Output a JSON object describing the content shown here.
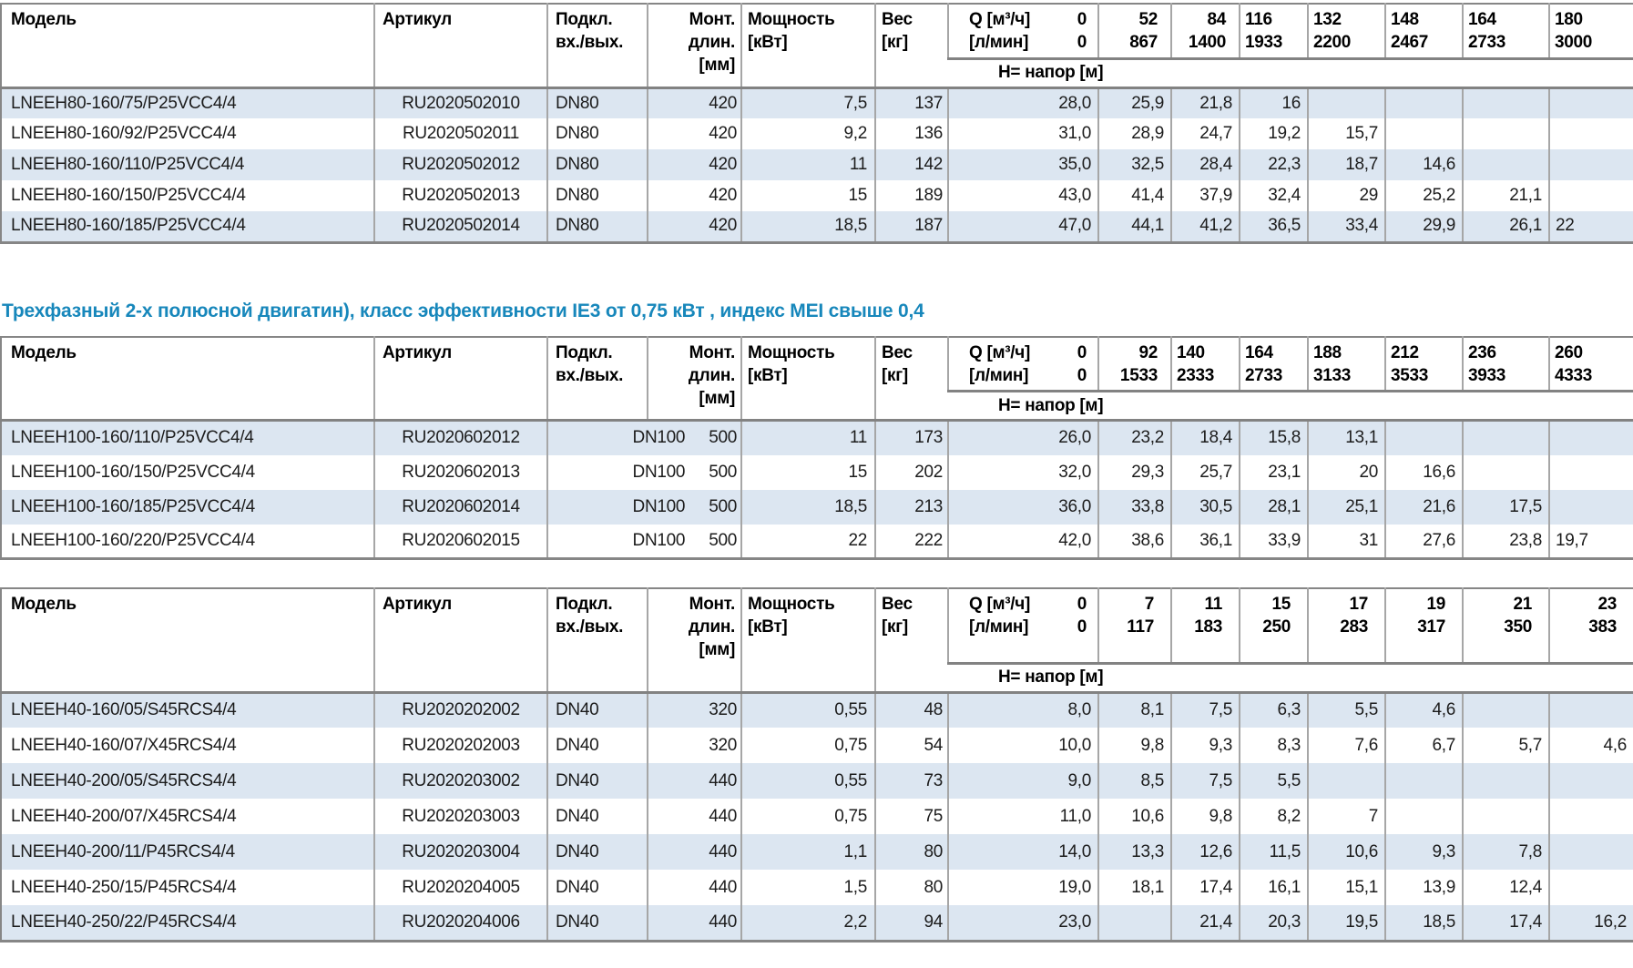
{
  "colors": {
    "accent": "#1787bb",
    "stripe": "#dce6f1",
    "border_light": "#a6a6a6",
    "border_dark": "#828282"
  },
  "heading": {
    "text": "Трехфазный 2-х полюсной двигатин), класс эффективности IE3 от 0,75 кВт ,  индекс MEI свыше 0,4"
  },
  "shared_headers": {
    "model": "Модель",
    "artikul": "Артикул",
    "podkl": [
      "Подкл.",
      "вх./вых."
    ],
    "mont": [
      "Монт.",
      "длин.",
      "[мм]"
    ],
    "power": [
      "Мощность",
      "[кВт]"
    ],
    "weight": [
      "Вес",
      "[кг]"
    ],
    "q_label": {
      "line1_left": "Q [м³/ч]",
      "line1_right": "0",
      "line2_left": "[л/мин]",
      "line2_right": "0"
    },
    "h_label": "H= напор [м]"
  },
  "tables": [
    {
      "name": "pump-table-lneeh80",
      "merged_podkl_mont": false,
      "q_last_align": "left",
      "q_cols": [
        {
          "m3": "52",
          "lmin": "867",
          "align": "right"
        },
        {
          "m3": "84",
          "lmin": "1400",
          "align": "right"
        },
        {
          "m3": "116",
          "lmin": "1933",
          "align": "left"
        },
        {
          "m3": "132",
          "lmin": "2200",
          "align": "left"
        },
        {
          "m3": "148",
          "lmin": "2467",
          "align": "left"
        },
        {
          "m3": "164",
          "lmin": "2733",
          "align": "left"
        },
        {
          "m3": "180",
          "lmin": "3000",
          "align": "left"
        }
      ],
      "rows": [
        {
          "model": "LNEEH80-160/75/P25VCC4/4",
          "artikul": "RU2020502010",
          "podkl": "DN80",
          "mont": "420",
          "power": "7,5",
          "weight": "137",
          "h": [
            "28,0",
            "25,9",
            "21,8",
            "16",
            "",
            "",
            "",
            ""
          ]
        },
        {
          "model": "LNEEH80-160/92/P25VCC4/4",
          "artikul": "RU2020502011",
          "podkl": "DN80",
          "mont": "420",
          "power": "9,2",
          "weight": "136",
          "h": [
            "31,0",
            "28,9",
            "24,7",
            "19,2",
            "15,7",
            "",
            "",
            ""
          ]
        },
        {
          "model": "LNEEH80-160/110/P25VCC4/4",
          "artikul": "RU2020502012",
          "podkl": "DN80",
          "mont": "420",
          "power": "11",
          "weight": "142",
          "h": [
            "35,0",
            "32,5",
            "28,4",
            "22,3",
            "18,7",
            "14,6",
            "",
            ""
          ]
        },
        {
          "model": "LNEEH80-160/150/P25VCC4/4",
          "artikul": "RU2020502013",
          "podkl": "DN80",
          "mont": "420",
          "power": "15",
          "weight": "189",
          "h": [
            "43,0",
            "41,4",
            "37,9",
            "32,4",
            "29",
            "25,2",
            "21,1",
            ""
          ]
        },
        {
          "model": "LNEEH80-160/185/P25VCC4/4",
          "artikul": "RU2020502014",
          "podkl": "DN80",
          "mont": "420",
          "power": "18,5",
          "weight": "187",
          "h": [
            "47,0",
            "44,1",
            "41,2",
            "36,5",
            "33,4",
            "29,9",
            "26,1",
            "22"
          ]
        }
      ]
    },
    {
      "name": "pump-table-lneeh100",
      "merged_podkl_mont": true,
      "q_last_align": "left",
      "q_cols": [
        {
          "m3": "92",
          "lmin": "1533",
          "align": "right"
        },
        {
          "m3": "140",
          "lmin": "2333",
          "align": "left"
        },
        {
          "m3": "164",
          "lmin": "2733",
          "align": "left"
        },
        {
          "m3": "188",
          "lmin": "3133",
          "align": "left"
        },
        {
          "m3": "212",
          "lmin": "3533",
          "align": "left"
        },
        {
          "m3": "236",
          "lmin": "3933",
          "align": "left"
        },
        {
          "m3": "260",
          "lmin": "4333",
          "align": "left"
        }
      ],
      "rows": [
        {
          "model": "LNEEH100-160/110/P25VCC4/4",
          "artikul": "RU2020602012",
          "podkl": "DN100",
          "mont": "500",
          "power": "11",
          "weight": "173",
          "h": [
            "26,0",
            "23,2",
            "18,4",
            "15,8",
            "13,1",
            "",
            "",
            ""
          ]
        },
        {
          "model": "LNEEH100-160/150/P25VCC4/4",
          "artikul": "RU2020602013",
          "podkl": "DN100",
          "mont": "500",
          "power": "15",
          "weight": "202",
          "h": [
            "32,0",
            "29,3",
            "25,7",
            "23,1",
            "20",
            "16,6",
            "",
            ""
          ]
        },
        {
          "model": "LNEEH100-160/185/P25VCC4/4",
          "artikul": "RU2020602014",
          "podkl": "DN100",
          "mont": "500",
          "power": "18,5",
          "weight": "213",
          "h": [
            "36,0",
            "33,8",
            "30,5",
            "28,1",
            "25,1",
            "21,6",
            "17,5",
            ""
          ]
        },
        {
          "model": "LNEEH100-160/220/P25VCC4/4",
          "artikul": "RU2020602015",
          "podkl": "DN100",
          "mont": "500",
          "power": "22",
          "weight": "222",
          "h": [
            "42,0",
            "38,6",
            "36,1",
            "33,9",
            "31",
            "27,6",
            "23,8",
            "19,7"
          ]
        }
      ]
    },
    {
      "name": "pump-table-lneeh40",
      "merged_podkl_mont": false,
      "q_last_align": "right",
      "q_cols": [
        {
          "m3": "7",
          "lmin": "117",
          "align": "right"
        },
        {
          "m3": "11",
          "lmin": "183",
          "align": "right"
        },
        {
          "m3": "15",
          "lmin": "250",
          "align": "right"
        },
        {
          "m3": "17",
          "lmin": "283",
          "align": "right"
        },
        {
          "m3": "19",
          "lmin": "317",
          "align": "right"
        },
        {
          "m3": "21",
          "lmin": "350",
          "align": "right"
        },
        {
          "m3": "23",
          "lmin": "383",
          "align": "right"
        }
      ],
      "rows": [
        {
          "model": "LNEEH40-160/05/S45RCS4/4",
          "artikul": "RU2020202002",
          "podkl": "DN40",
          "mont": "320",
          "power": "0,55",
          "weight": "48",
          "h": [
            "8,0",
            "8,1",
            "7,5",
            "6,3",
            "5,5",
            "4,6",
            "",
            ""
          ]
        },
        {
          "model": "LNEEH40-160/07/X45RCS4/4",
          "artikul": "RU2020202003",
          "podkl": "DN40",
          "mont": "320",
          "power": "0,75",
          "weight": "54",
          "h": [
            "10,0",
            "9,8",
            "9,3",
            "8,3",
            "7,6",
            "6,7",
            "5,7",
            "4,6"
          ]
        },
        {
          "model": "LNEEH40-200/05/S45RCS4/4",
          "artikul": "RU2020203002",
          "podkl": "DN40",
          "mont": "440",
          "power": "0,55",
          "weight": "73",
          "h": [
            "9,0",
            "8,5",
            "7,5",
            "5,5",
            "",
            "",
            "",
            ""
          ]
        },
        {
          "model": "LNEEH40-200/07/X45RCS4/4",
          "artikul": "RU2020203003",
          "podkl": "DN40",
          "mont": "440",
          "power": "0,75",
          "weight": "75",
          "h": [
            "11,0",
            "10,6",
            "9,8",
            "8,2",
            "7",
            "",
            "",
            ""
          ]
        },
        {
          "model": "LNEEH40-200/11/P45RCS4/4",
          "artikul": "RU2020203004",
          "podkl": "DN40",
          "mont": "440",
          "power": "1,1",
          "weight": "80",
          "h": [
            "14,0",
            "13,3",
            "12,6",
            "11,5",
            "10,6",
            "9,3",
            "7,8",
            ""
          ]
        },
        {
          "model": "LNEEH40-250/15/P45RCS4/4",
          "artikul": "RU2020204005",
          "podkl": "DN40",
          "mont": "440",
          "power": "1,5",
          "weight": "80",
          "h": [
            "19,0",
            "18,1",
            "17,4",
            "16,1",
            "15,1",
            "13,9",
            "12,4",
            ""
          ]
        },
        {
          "model": "LNEEH40-250/22/P45RCS4/4",
          "artikul": "RU2020204006",
          "podkl": "DN40",
          "mont": "440",
          "power": "2,2",
          "weight": "94",
          "h": [
            "23,0",
            "",
            "21,4",
            "20,3",
            "19,5",
            "18,5",
            "17,4",
            "16,2"
          ]
        }
      ]
    }
  ]
}
